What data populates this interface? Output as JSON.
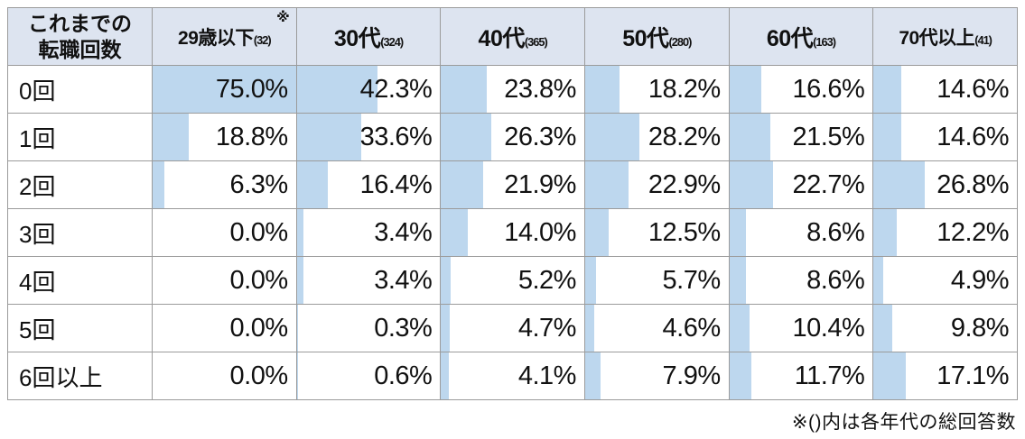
{
  "table": {
    "corner": {
      "line1": "これまでの",
      "line2": "転職回数"
    },
    "columns": [
      {
        "label": "29歳以下",
        "count": "(32)",
        "note_mark": "※"
      },
      {
        "label": "30代",
        "count": "(324)"
      },
      {
        "label": "40代",
        "count": "(365)"
      },
      {
        "label": "50代",
        "count": "(280)"
      },
      {
        "label": "60代",
        "count": "(163)"
      },
      {
        "label": "70代以上",
        "count": "(41)"
      }
    ],
    "rows": [
      {
        "label": "0回",
        "values": [
          "75.0%",
          "42.3%",
          "23.8%",
          "18.2%",
          "16.6%",
          "14.6%"
        ]
      },
      {
        "label": "1回",
        "values": [
          "18.8%",
          "33.6%",
          "26.3%",
          "28.2%",
          "21.5%",
          "14.6%"
        ]
      },
      {
        "label": "2回",
        "values": [
          "6.3%",
          "16.4%",
          "21.9%",
          "22.9%",
          "22.7%",
          "26.8%"
        ]
      },
      {
        "label": "3回",
        "values": [
          "0.0%",
          "3.4%",
          "14.0%",
          "12.5%",
          "8.6%",
          "12.2%"
        ]
      },
      {
        "label": "4回",
        "values": [
          "0.0%",
          "3.4%",
          "5.2%",
          "5.7%",
          "8.6%",
          "4.9%"
        ]
      },
      {
        "label": "5回",
        "values": [
          "0.0%",
          "0.3%",
          "4.7%",
          "4.6%",
          "10.4%",
          "9.8%"
        ]
      },
      {
        "label": "6回以上",
        "values": [
          "0.0%",
          "0.6%",
          "4.1%",
          "7.9%",
          "11.7%",
          "17.1%"
        ]
      }
    ]
  },
  "footnote": "※()内は各年代の総回答数",
  "colors": {
    "bar": "#bdd7ee",
    "header_bg": "#dde4f0",
    "border": "#9b9b9b",
    "text": "#111111"
  },
  "chart_data": {
    "type": "table",
    "title": "これまでの転職回数",
    "categories": [
      "29歳以下",
      "30代",
      "40代",
      "50代",
      "60代",
      "70代以上"
    ],
    "respondent_counts": [
      32,
      324,
      365,
      280,
      163,
      41
    ],
    "row_labels": [
      "0回",
      "1回",
      "2回",
      "3回",
      "4回",
      "5回",
      "6回以上"
    ],
    "series": [
      {
        "name": "29歳以下",
        "values": [
          75.0,
          18.8,
          6.3,
          0.0,
          0.0,
          0.0,
          0.0
        ]
      },
      {
        "name": "30代",
        "values": [
          42.3,
          33.6,
          16.4,
          3.4,
          3.4,
          0.3,
          0.6
        ]
      },
      {
        "name": "40代",
        "values": [
          23.8,
          26.3,
          21.9,
          14.0,
          5.2,
          4.7,
          4.1
        ]
      },
      {
        "name": "50代",
        "values": [
          18.2,
          28.2,
          22.9,
          12.5,
          5.7,
          4.6,
          7.9
        ]
      },
      {
        "name": "60代",
        "values": [
          16.6,
          21.5,
          22.7,
          8.6,
          8.6,
          10.4,
          11.7
        ]
      },
      {
        "name": "70代以上",
        "values": [
          14.6,
          14.6,
          26.8,
          12.2,
          4.9,
          9.8,
          17.1
        ]
      }
    ],
    "unit": "%",
    "bar_scale_max": 75.0,
    "footnote": "※()内は各年代の総回答数"
  }
}
